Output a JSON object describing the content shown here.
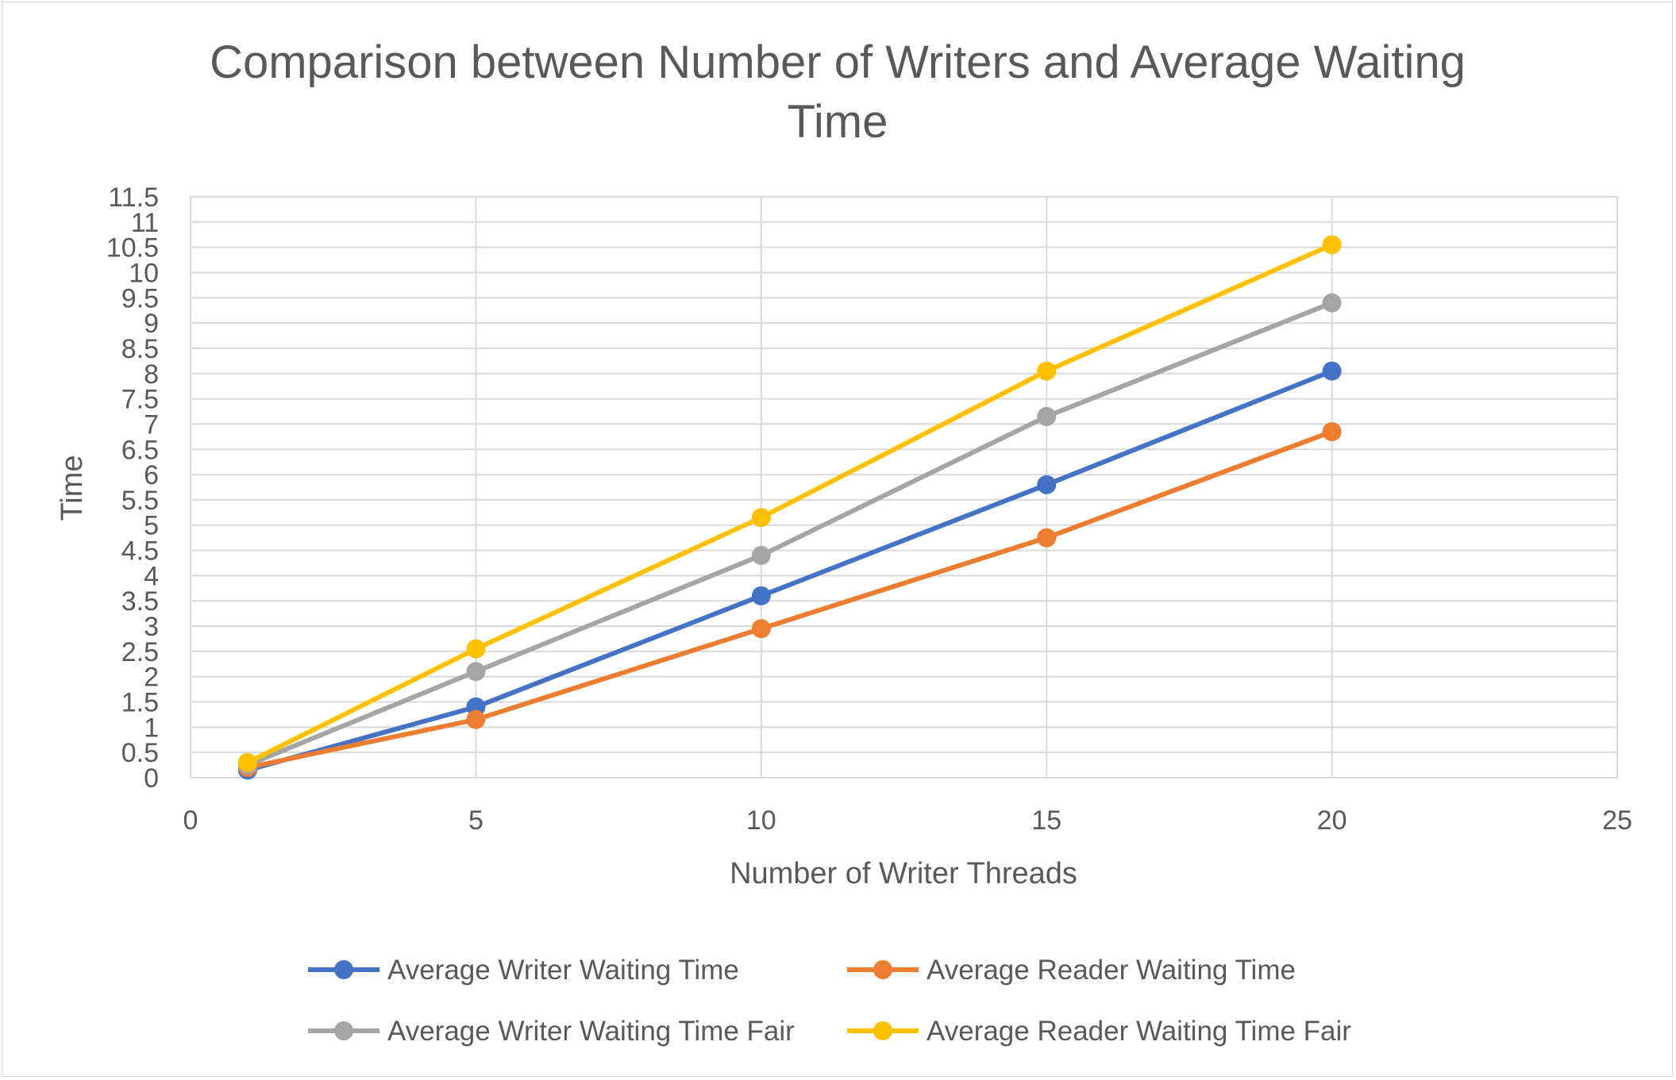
{
  "chart_data": {
    "type": "line",
    "title_line1": "Comparison between Number of Writers and Average Waiting",
    "title_line2": "Time",
    "xlabel": "Number of Writer Threads",
    "ylabel": "Time",
    "xlim": [
      0,
      25
    ],
    "ylim": [
      0,
      11.5
    ],
    "x_ticks": [
      "0",
      "5",
      "10",
      "15",
      "20",
      "25"
    ],
    "y_ticks": [
      "0",
      "0.5",
      "1",
      "1.5",
      "2",
      "2.5",
      "3",
      "3.5",
      "4",
      "4.5",
      "5",
      "5.5",
      "6",
      "6.5",
      "7",
      "7.5",
      "8",
      "8.5",
      "9",
      "9.5",
      "10",
      "10.5",
      "11",
      "11.5"
    ],
    "grid": true,
    "legend_position": "bottom",
    "x": [
      1,
      5,
      10,
      15,
      20
    ],
    "series": [
      {
        "name": "Average Writer Waiting Time",
        "color": "#4472c4",
        "values": [
          0.15,
          1.4,
          3.6,
          5.8,
          8.05
        ]
      },
      {
        "name": "Average Reader Waiting Time",
        "color": "#ed7d31",
        "values": [
          0.2,
          1.15,
          2.95,
          4.75,
          6.85
        ]
      },
      {
        "name": "Average Writer Waiting Time Fair",
        "color": "#a5a5a5",
        "values": [
          0.25,
          2.1,
          4.4,
          7.15,
          9.4
        ]
      },
      {
        "name": "Average Reader Waiting Time Fair",
        "color": "#ffc000",
        "values": [
          0.3,
          2.55,
          5.15,
          8.05,
          10.55
        ]
      }
    ]
  }
}
